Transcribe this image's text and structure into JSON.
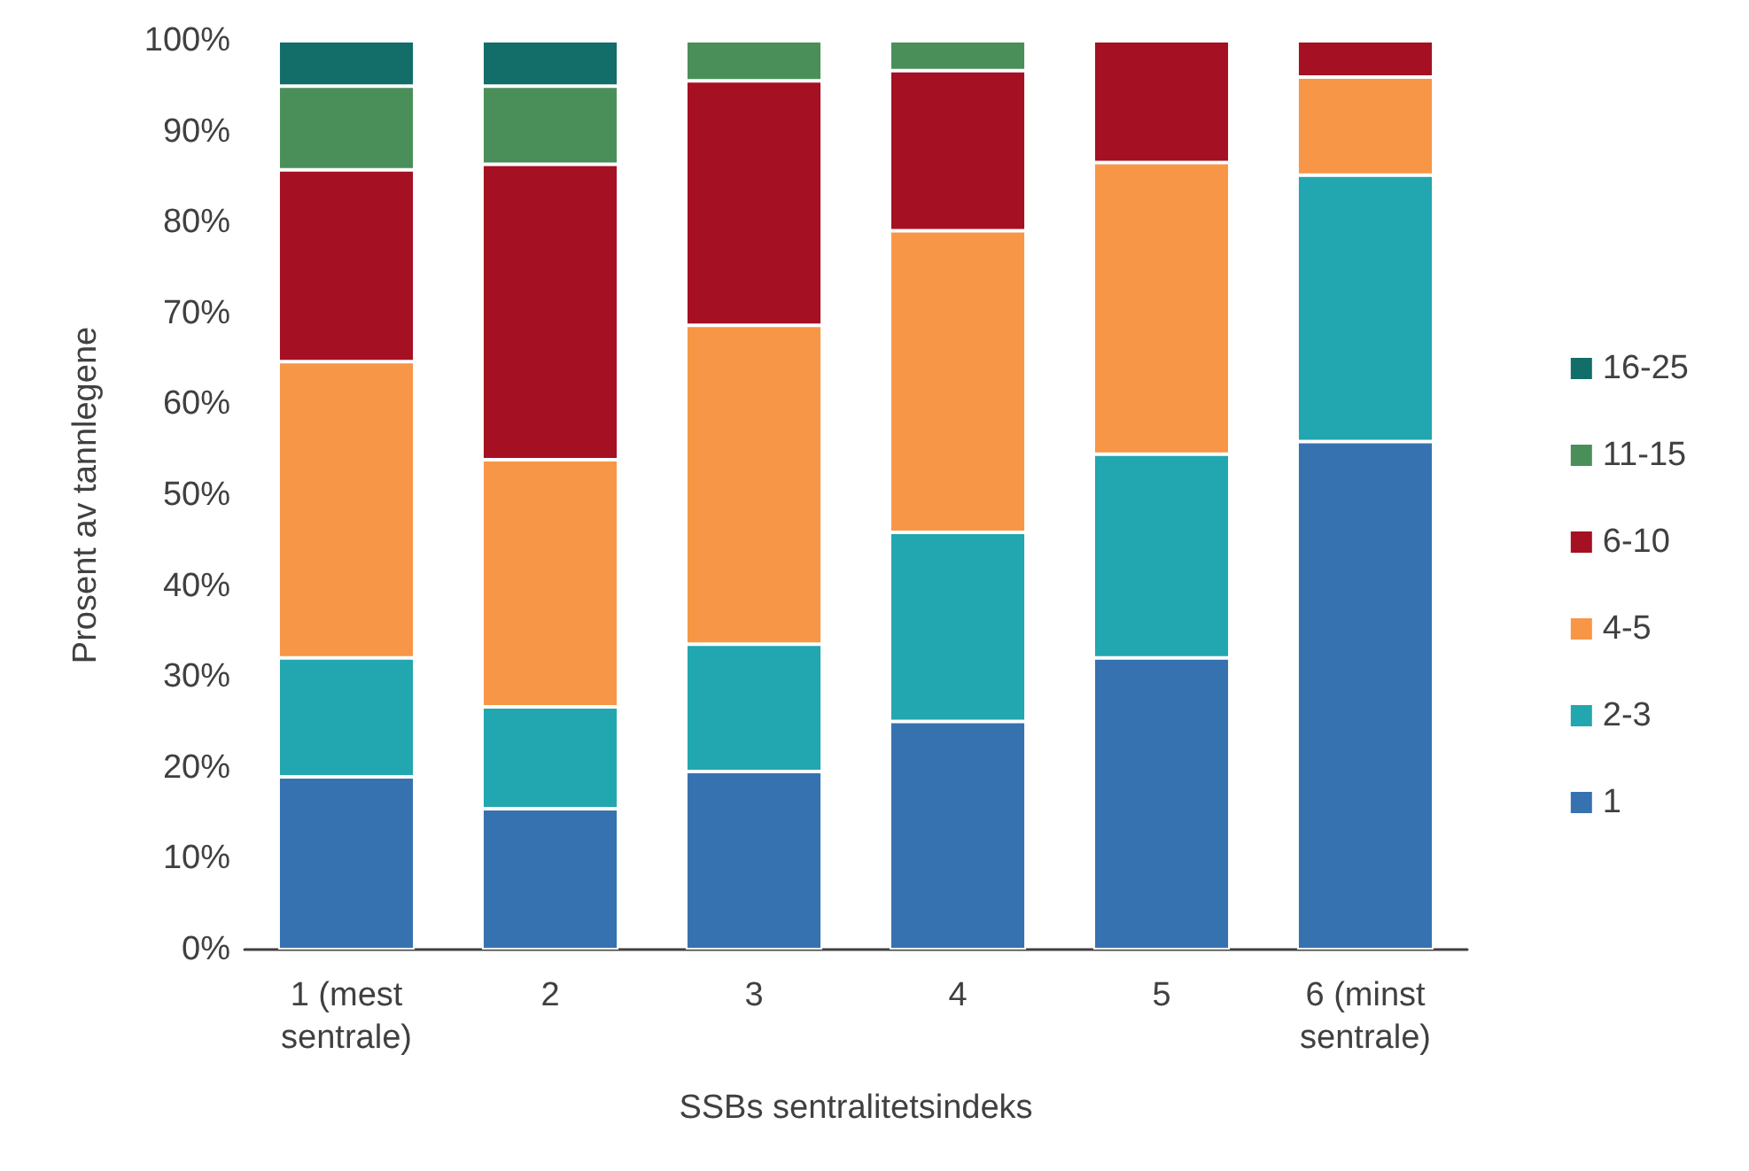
{
  "chart_data": {
    "type": "bar",
    "stacked": true,
    "xlabel": "SSBs sentralitetsindeks",
    "ylabel": "Prosent av tannlegene",
    "categories": [
      "1 (mest\nsentrale)",
      "2",
      "3",
      "4",
      "5",
      "6 (minst\nsentrale)"
    ],
    "series": [
      {
        "name": "1",
        "color": "#3672b0",
        "values": [
          19.0,
          15.5,
          19.6,
          25.1,
          32.1,
          55.9
        ]
      },
      {
        "name": "2-3",
        "color": "#22a6b0",
        "values": [
          13.1,
          11.2,
          14.0,
          20.8,
          22.4,
          29.3
        ]
      },
      {
        "name": "4-5",
        "color": "#f79646",
        "values": [
          32.6,
          27.2,
          35.1,
          33.2,
          32.1,
          10.8
        ]
      },
      {
        "name": "6-10",
        "color": "#a51022",
        "values": [
          21.1,
          32.5,
          26.9,
          17.6,
          13.4,
          4.0
        ]
      },
      {
        "name": "11-15",
        "color": "#4a8f5a",
        "values": [
          9.2,
          8.6,
          4.4,
          3.3,
          null,
          null
        ]
      },
      {
        "name": "16-25",
        "color": "#136e6a",
        "values": [
          5.0,
          5.0,
          null,
          null,
          null,
          null
        ]
      }
    ],
    "ylim": [
      0,
      100
    ],
    "yticks": [
      {
        "value": 0,
        "label": "0%"
      },
      {
        "value": 10,
        "label": "10%"
      },
      {
        "value": 20,
        "label": "20%"
      },
      {
        "value": 30,
        "label": "30%"
      },
      {
        "value": 40,
        "label": "40%"
      },
      {
        "value": 50,
        "label": "50%"
      },
      {
        "value": 60,
        "label": "60%"
      },
      {
        "value": 70,
        "label": "70%"
      },
      {
        "value": 80,
        "label": "80%"
      },
      {
        "value": 90,
        "label": "90%"
      },
      {
        "value": 100,
        "label": "100%"
      }
    ],
    "grid": false,
    "legend": "right"
  }
}
